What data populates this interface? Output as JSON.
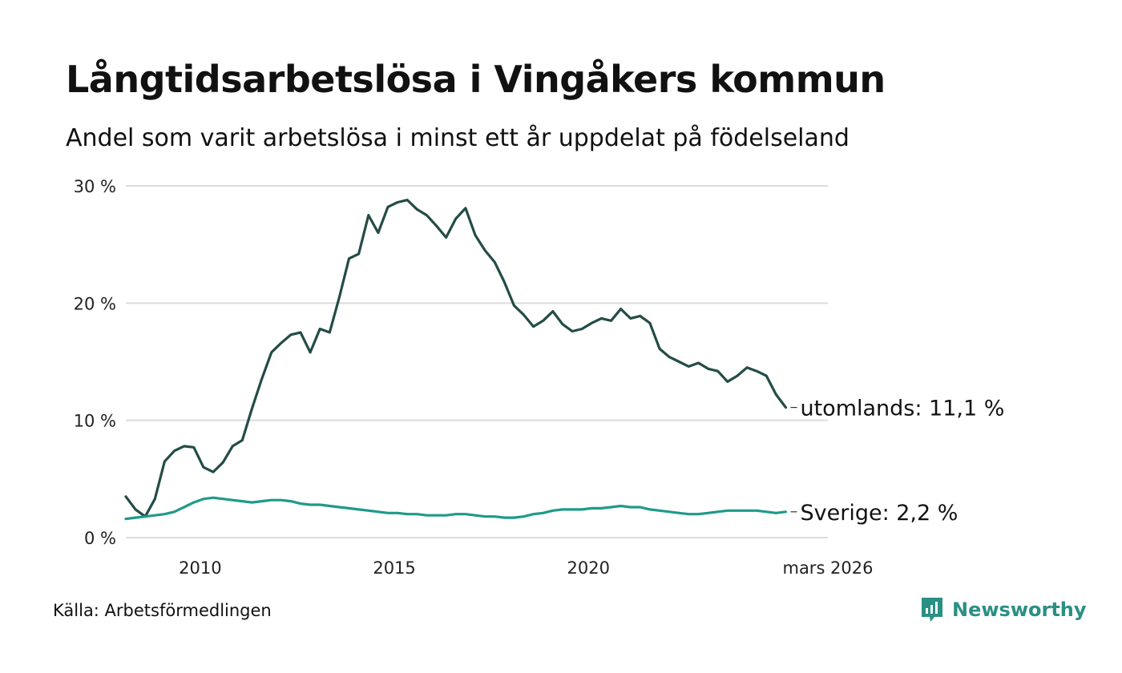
{
  "header": {
    "title": "Långtidsarbetslösa i Vingåkers kommun",
    "subtitle": "Andel som varit arbetslösa i minst ett år uppdelat på födelseland"
  },
  "footer": {
    "source": "Källa: Arbetsförmedlingen",
    "brand": "Newsworthy"
  },
  "colors": {
    "abroad": "#244c47",
    "sweden": "#1f9a8a",
    "grid": "#dcdcdc",
    "brand": "#2a8f84"
  },
  "chart_data": {
    "type": "line",
    "title": "Långtidsarbetslösa i Vingåkers kommun",
    "xlabel": "",
    "ylabel": "",
    "ylim": [
      0,
      30
    ],
    "xlim": [
      2008.083,
      2026.167
    ],
    "y_ticks": [
      0,
      10,
      20,
      30
    ],
    "y_tick_labels": [
      "0 %",
      "10 %",
      "20 %",
      "30 %"
    ],
    "x_ticks": [
      2010,
      2015,
      2020,
      2026.167
    ],
    "x_tick_labels": [
      "2010",
      "2015",
      "2020",
      "mars 2026"
    ],
    "grid": true,
    "legend": "end-labels",
    "series": [
      {
        "name": "utomlands",
        "label": "utomlands: 11,1 %",
        "x_start": 2008.083,
        "step": 0.25,
        "values": [
          3.5,
          2.4,
          1.8,
          3.3,
          6.5,
          7.4,
          7.8,
          7.7,
          6.0,
          5.6,
          6.4,
          7.8,
          8.3,
          11.0,
          13.5,
          15.8,
          16.6,
          17.3,
          17.5,
          15.8,
          17.8,
          17.5,
          20.5,
          23.8,
          24.2,
          27.5,
          26.0,
          28.2,
          28.6,
          28.8,
          28.0,
          27.5,
          26.6,
          25.6,
          27.2,
          28.1,
          25.8,
          24.5,
          23.5,
          21.8,
          19.8,
          19.0,
          18.0,
          18.5,
          19.3,
          18.2,
          17.6,
          17.8,
          18.3,
          18.7,
          18.5,
          19.5,
          18.7,
          18.9,
          18.3,
          16.1,
          15.4,
          15.0,
          14.6,
          14.9,
          14.4,
          14.2,
          13.3,
          13.8,
          14.5,
          14.2,
          13.8,
          12.2,
          11.1
        ],
        "color": "#244c47"
      },
      {
        "name": "Sverige",
        "label": "Sverige:  2,2 %",
        "x_start": 2008.083,
        "step": 0.25,
        "values": [
          1.6,
          1.7,
          1.8,
          1.9,
          2.0,
          2.2,
          2.6,
          3.0,
          3.3,
          3.4,
          3.3,
          3.2,
          3.1,
          3.0,
          3.1,
          3.2,
          3.2,
          3.1,
          2.9,
          2.8,
          2.8,
          2.7,
          2.6,
          2.5,
          2.4,
          2.3,
          2.2,
          2.1,
          2.1,
          2.0,
          2.0,
          1.9,
          1.9,
          1.9,
          2.0,
          2.0,
          1.9,
          1.8,
          1.8,
          1.7,
          1.7,
          1.8,
          2.0,
          2.1,
          2.3,
          2.4,
          2.4,
          2.4,
          2.5,
          2.5,
          2.6,
          2.7,
          2.6,
          2.6,
          2.4,
          2.3,
          2.2,
          2.1,
          2.0,
          2.0,
          2.1,
          2.2,
          2.3,
          2.3,
          2.3,
          2.3,
          2.2,
          2.1,
          2.2
        ],
        "color": "#1f9a8a"
      }
    ]
  }
}
